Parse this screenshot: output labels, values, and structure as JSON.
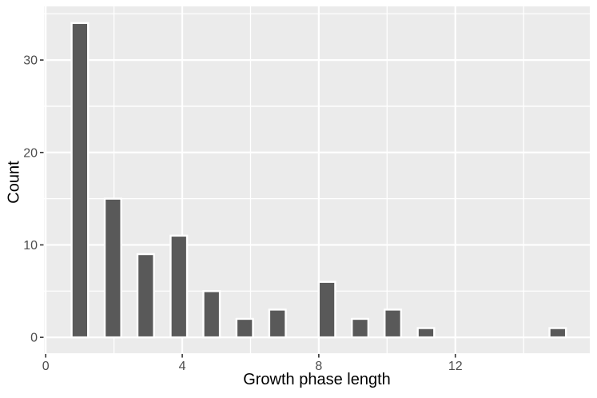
{
  "chart_data": {
    "type": "bar",
    "subtype": "histogram",
    "title": "",
    "xlabel": "Growth phase length",
    "ylabel": "Count",
    "x_tick_values": [
      0,
      4,
      8,
      12
    ],
    "x_tick_labels": [
      "0",
      "4",
      "8",
      "12"
    ],
    "y_tick_values": [
      0,
      10,
      20,
      30
    ],
    "y_tick_labels": [
      "0",
      "10",
      "20",
      "30"
    ],
    "x_minor_gridlines": [
      2,
      6,
      10,
      14
    ],
    "y_minor_gridlines": [
      5,
      15,
      25,
      35
    ],
    "xlim": [
      -0.04,
      15.94
    ],
    "ylim": [
      -1.72,
      35.8
    ],
    "binwidth": 0.483,
    "grid": "on",
    "legend_position": "none",
    "bars": [
      {
        "x": 1.0,
        "count": 34
      },
      {
        "x": 1.97,
        "count": 15
      },
      {
        "x": 2.93,
        "count": 9
      },
      {
        "x": 3.9,
        "count": 11
      },
      {
        "x": 4.86,
        "count": 5
      },
      {
        "x": 5.83,
        "count": 2
      },
      {
        "x": 6.79,
        "count": 3
      },
      {
        "x": 8.24,
        "count": 6
      },
      {
        "x": 9.21,
        "count": 2
      },
      {
        "x": 10.17,
        "count": 3
      },
      {
        "x": 11.14,
        "count": 1
      },
      {
        "x": 15.0,
        "count": 1
      }
    ],
    "style": {
      "background": "#FFFFFF",
      "panel_bg": "#EBEBEB",
      "grid_color": "#FFFFFF",
      "bar_fill": "#595959",
      "bar_outline": "#FFFFFF",
      "tick_mark_color": "#333333",
      "tick_label_color": "#4D4D4D",
      "axis_title_color": "#000000"
    }
  }
}
